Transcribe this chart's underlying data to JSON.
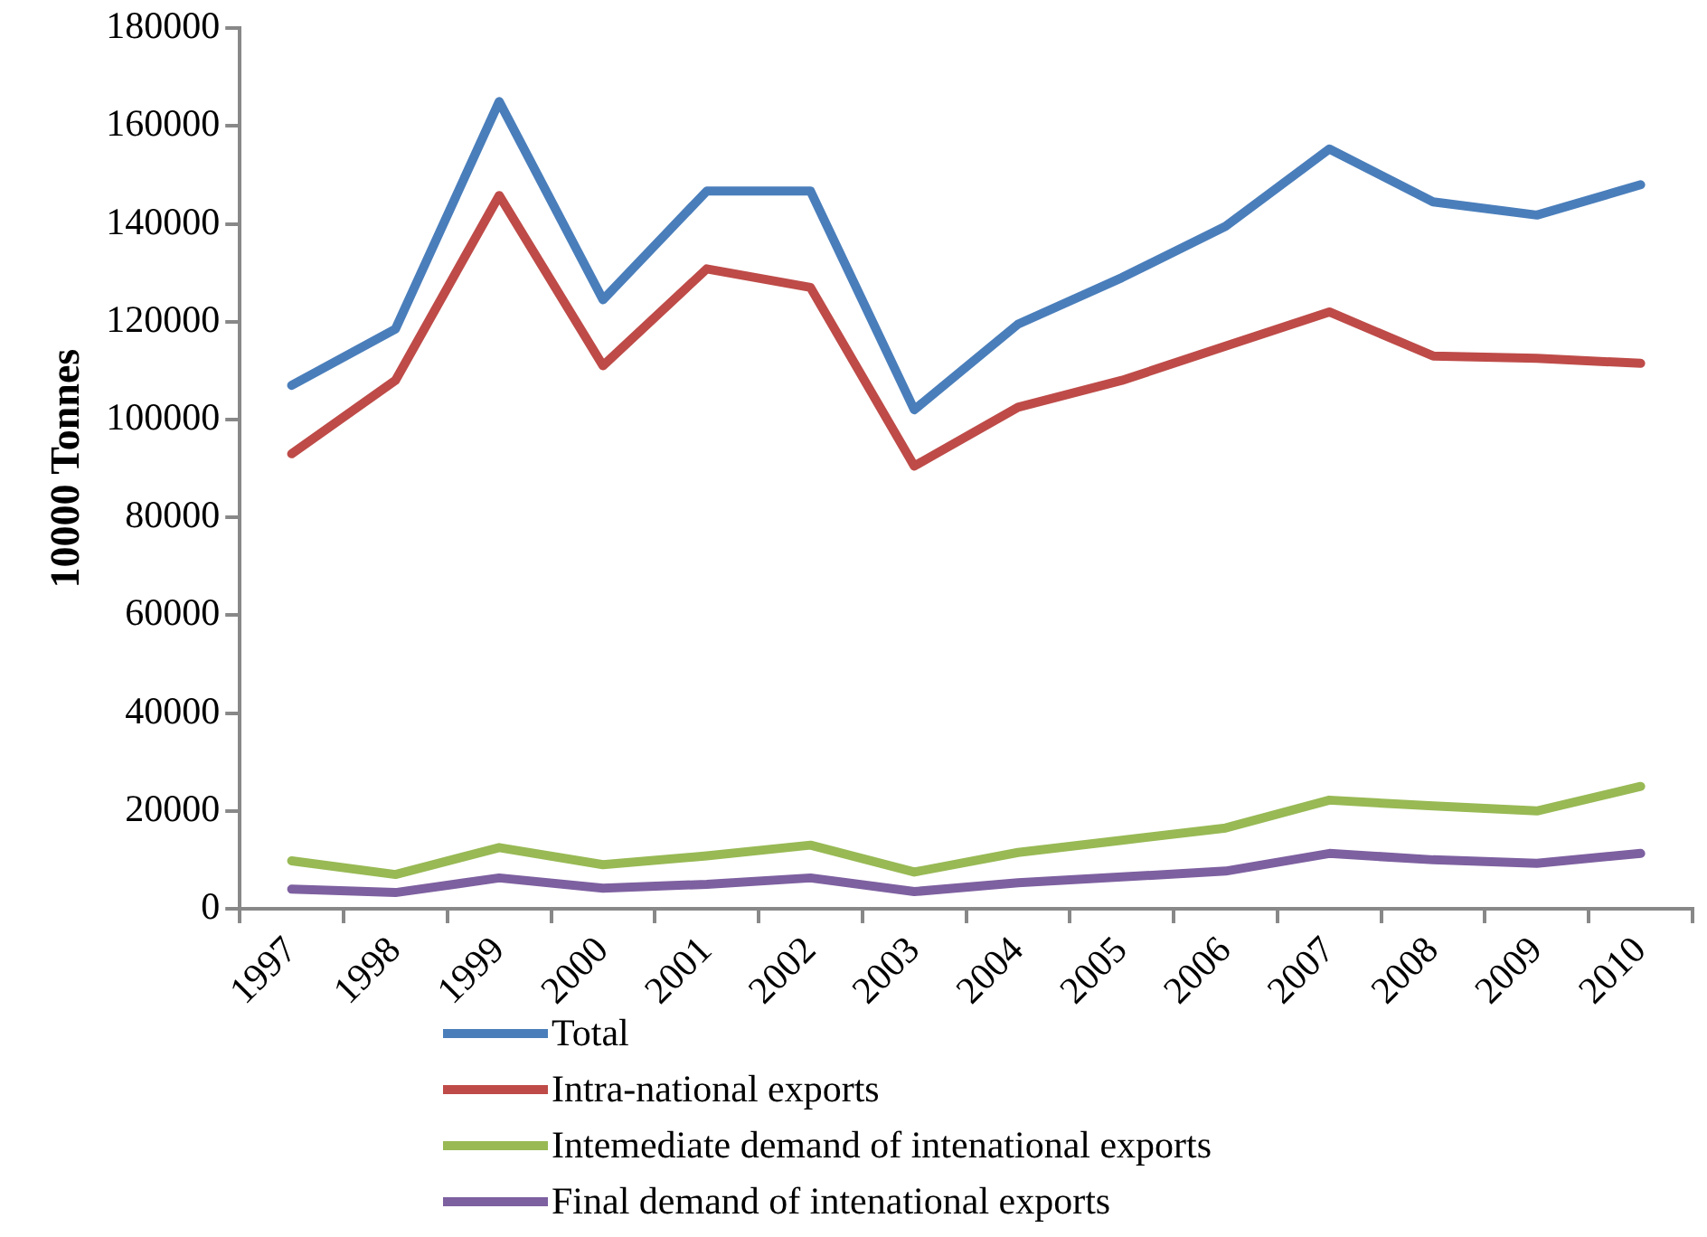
{
  "chart_data": {
    "type": "line",
    "ylabel": "10000 Tonnes",
    "categories": [
      "1997",
      "1998",
      "1999",
      "2000",
      "2001",
      "2002",
      "2003",
      "2004",
      "2005",
      "2006",
      "2007",
      "2008",
      "2009",
      "2010"
    ],
    "series": [
      {
        "name": "Total",
        "color": "#4a7ebb",
        "values": [
          107000,
          118500,
          165000,
          124500,
          146700,
          146700,
          102000,
          119500,
          129000,
          139500,
          155300,
          144500,
          141800,
          148000
        ]
      },
      {
        "name": "Intra-national exports",
        "color": "#be4b48",
        "values": [
          93000,
          108000,
          145800,
          111000,
          130800,
          127000,
          90500,
          102500,
          108000,
          115000,
          122000,
          113000,
          112500,
          111500
        ]
      },
      {
        "name": "Intemediate demand of intenational exports",
        "color": "#98b954",
        "values": [
          9800,
          7000,
          12500,
          9000,
          10800,
          13000,
          7500,
          11500,
          14000,
          16500,
          22200,
          21000,
          20000,
          25000
        ]
      },
      {
        "name": "Final demand of intenational exports",
        "color": "#7d60a0",
        "values": [
          4000,
          3300,
          6300,
          4200,
          5000,
          6300,
          3500,
          5300,
          6500,
          7700,
          11300,
          10000,
          9300,
          11300
        ]
      }
    ],
    "ylim": [
      0,
      180000
    ],
    "yticks": [
      0,
      20000,
      40000,
      60000,
      80000,
      100000,
      120000,
      140000,
      160000,
      180000
    ],
    "grid": false,
    "legend": "bottom",
    "marker": "none",
    "line_style": "solid"
  }
}
